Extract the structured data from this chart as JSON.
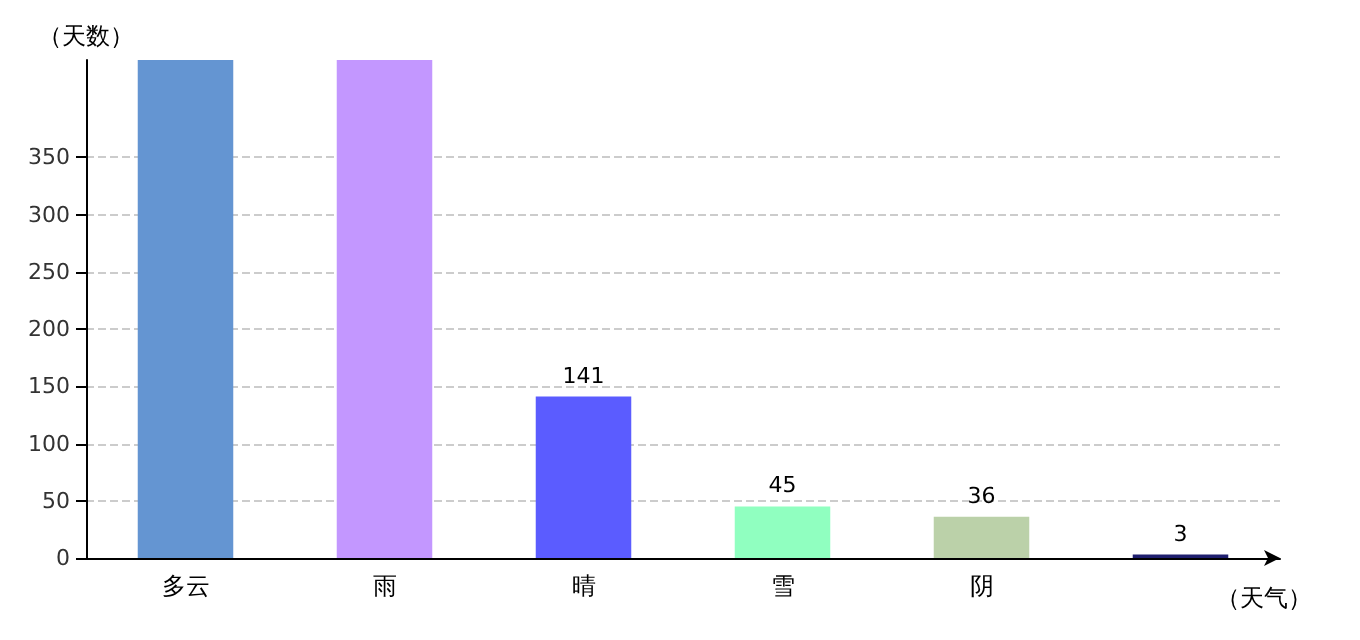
{
  "chart_data": {
    "type": "bar",
    "xlabel": "（天气）",
    "ylabel": "（天数）",
    "categories": [
      "多云",
      "雨",
      "晴",
      "雪",
      "阴",
      null
    ],
    "values": [
      435,
      435,
      141,
      45,
      36,
      3
    ],
    "colors": [
      "#6495d2",
      "#c397ff",
      "#5b5cff",
      "#90ffc0",
      "#bbd1a9",
      "#1e1e6e"
    ],
    "value_labels": [
      null,
      null,
      "141",
      "45",
      "36",
      "3"
    ],
    "ylim": [
      0,
      435
    ],
    "yticks": [
      0,
      50,
      100,
      150,
      200,
      250,
      300,
      350
    ],
    "grid": "y"
  }
}
